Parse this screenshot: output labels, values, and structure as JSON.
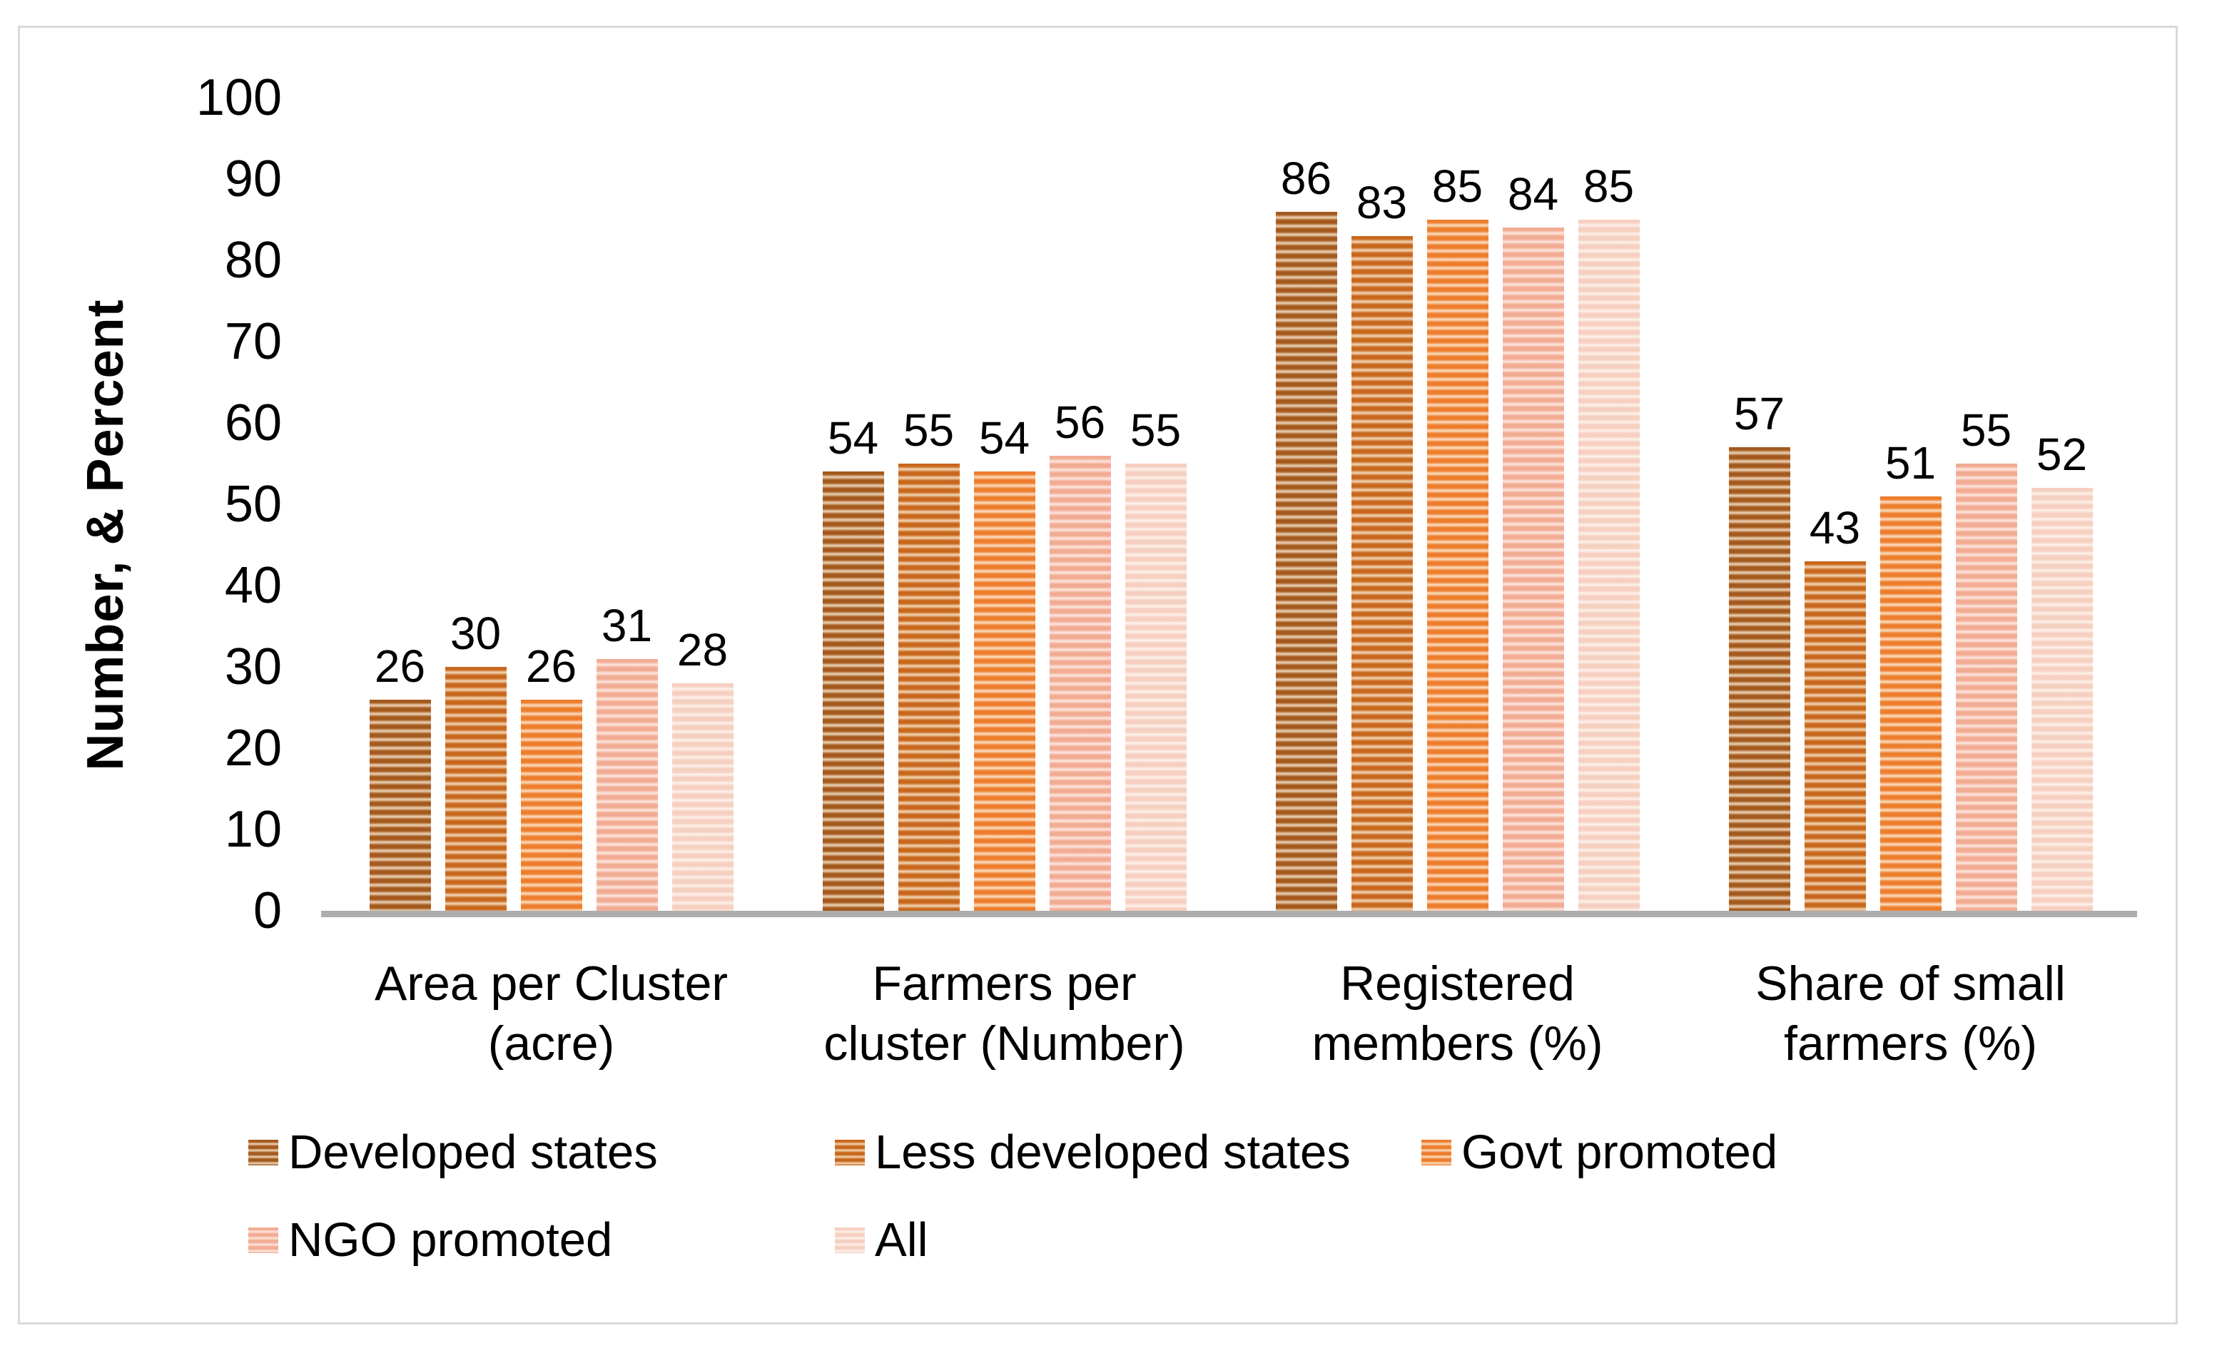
{
  "frame": {
    "border_color": "#d9d9d9",
    "background": "#ffffff",
    "baseline_color": "#adadad"
  },
  "chart_data": {
    "type": "bar",
    "title": "",
    "xlabel": "",
    "ylabel": "Number, & Percent",
    "ylim": [
      0,
      100
    ],
    "yticks": [
      0,
      10,
      20,
      30,
      40,
      50,
      60,
      70,
      80,
      90,
      100
    ],
    "grid": false,
    "legend_position": "bottom",
    "bar_pattern": "horizontal-stripes",
    "categories": [
      {
        "label": "Area per Cluster (acre)",
        "lines": [
          "Area per Cluster",
          "(acre)"
        ]
      },
      {
        "label": "Farmers per cluster (Number)",
        "lines": [
          "Farmers per",
          "cluster (Number)"
        ]
      },
      {
        "label": "Registered members (%)",
        "lines": [
          "Registered",
          "members (%)"
        ]
      },
      {
        "label": "Share of small farmers (%)",
        "lines": [
          "Share of small",
          "farmers (%)"
        ]
      }
    ],
    "series": [
      {
        "name": "Developed states",
        "values": [
          26,
          54,
          86,
          57
        ],
        "color": "#A4591D",
        "color_light": "#EDD5B9"
      },
      {
        "name": "Less developed states",
        "values": [
          30,
          55,
          83,
          43
        ],
        "color": "#C8671C",
        "color_light": "#F3D7B7"
      },
      {
        "name": "Govt promoted",
        "values": [
          26,
          54,
          85,
          51
        ],
        "color": "#ED7D2C",
        "color_light": "#FCDFC3"
      },
      {
        "name": "NGO promoted",
        "values": [
          31,
          56,
          84,
          55
        ],
        "color": "#F2AB93",
        "color_light": "#FCE7DF"
      },
      {
        "name": "All",
        "values": [
          28,
          55,
          85,
          52
        ],
        "color": "#F6CFC0",
        "color_light": "#FDF1EC"
      }
    ]
  }
}
